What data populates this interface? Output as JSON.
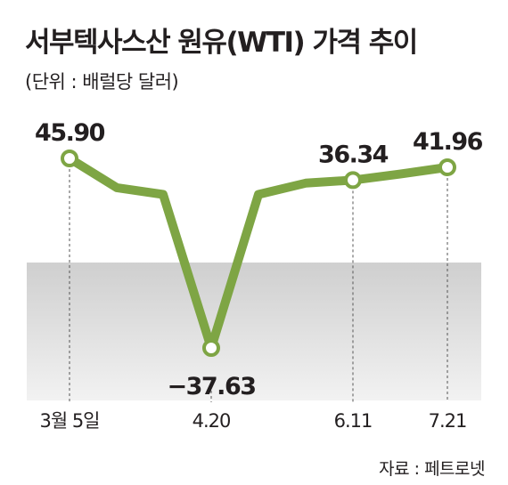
{
  "header": {
    "title": "서부텍사스산 원유(WTI) 가격 추이",
    "subtitle": "(단위 : 배럴당 달러)"
  },
  "footer": {
    "source": "자료 : 페트로넷"
  },
  "colors": {
    "line": "#7ea544",
    "marker_fill": "#ffffff",
    "negative_band_top": "#cfcfcf",
    "negative_band_bottom": "#f2f2f2"
  },
  "chart_data": {
    "type": "line",
    "title": "서부텍사스산 원유(WTI) 가격 추이",
    "ylabel": "(단위 : 배럴당 달러)",
    "ylim": [
      -45,
      55
    ],
    "negative_region_shaded": true,
    "series": [
      {
        "values": [
          45.9,
          33,
          30,
          -37.63,
          30,
          35,
          36.34,
          39,
          41.96
        ]
      }
    ],
    "tick_labels": [
      {
        "index": 0,
        "label": "3월 5일"
      },
      {
        "index": 3,
        "label": "4.20"
      },
      {
        "index": 6,
        "label": "6.11"
      },
      {
        "index": 8,
        "label": "7.21"
      }
    ],
    "data_labels": [
      {
        "index": 0,
        "text": "45.90",
        "position": "above"
      },
      {
        "index": 3,
        "text": "−37.63",
        "position": "below"
      },
      {
        "index": 6,
        "text": "36.34",
        "position": "above"
      },
      {
        "index": 8,
        "text": "41.96",
        "position": "above"
      }
    ],
    "marked_points": [
      0,
      3,
      6,
      8
    ]
  }
}
